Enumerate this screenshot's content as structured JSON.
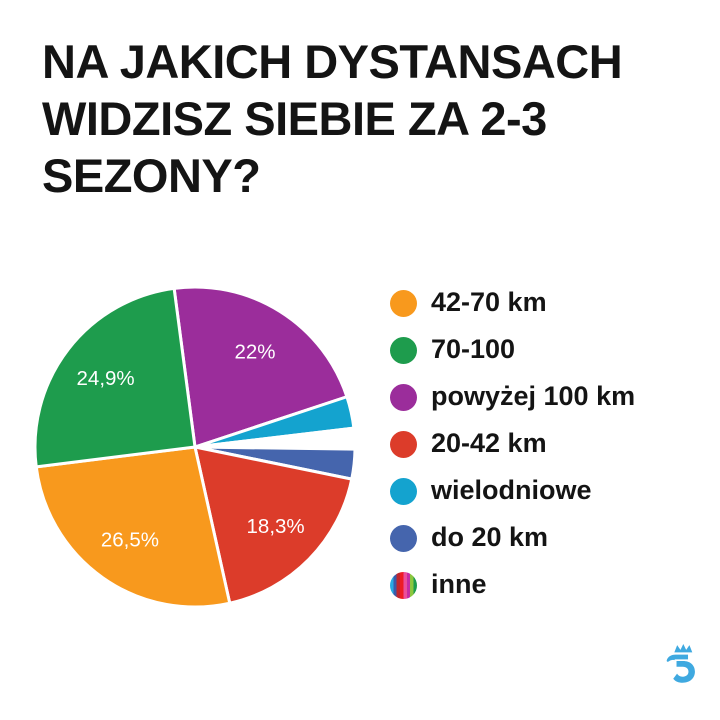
{
  "header": {
    "title": "NA JAKICH DYSTANSACH\nWIDZISZ SIEBIE ZA 2-3\nSEZONY?"
  },
  "chart_data": {
    "type": "pie",
    "title": "NA JAKICH DYSTANSACH WIDZISZ SIEBIE ZA 2-3 SEZONY?",
    "start_angle_deg": -7.5,
    "direction": "clockwise",
    "label_color": "#FFFFFF",
    "legend_position": "right",
    "slices_clockwise": [
      {
        "name": "powyżej 100 km",
        "value": 22.0,
        "display_label": "22%",
        "color": "#9B2D9B"
      },
      {
        "name": "wielodniowe",
        "value": 3.2,
        "display_label": "",
        "color": "#14A3CF"
      },
      {
        "name": "inne",
        "value": 2.1,
        "display_label": "",
        "color": "#FFFFFF"
      },
      {
        "name": "do 20 km",
        "value": 3.0,
        "display_label": "",
        "color": "#4565AD"
      },
      {
        "name": "20-42 km",
        "value": 18.3,
        "display_label": "18,3%",
        "color": "#DC3C2A"
      },
      {
        "name": "42-70 km",
        "value": 26.5,
        "display_label": "26,5%",
        "color": "#F8991D"
      },
      {
        "name": "70-100",
        "value": 24.9,
        "display_label": "24,9%",
        "color": "#1E9C4D"
      }
    ]
  },
  "legend": {
    "items": [
      {
        "label": "42-70 km",
        "swatch": "solid",
        "color": "#F8991D"
      },
      {
        "label": "70-100",
        "swatch": "solid",
        "color": "#1E9C4D"
      },
      {
        "label": "powyżej 100 km",
        "swatch": "solid",
        "color": "#9B2D9B"
      },
      {
        "label": "20-42 km",
        "swatch": "solid",
        "color": "#DC3C2A"
      },
      {
        "label": "wielodniowe",
        "swatch": "solid",
        "color": "#14A3CF"
      },
      {
        "label": "do 20 km",
        "swatch": "solid",
        "color": "#4565AD"
      },
      {
        "label": "inne",
        "swatch": "striped",
        "stripe_colors": [
          "#29ABE2",
          "#3B5BA9",
          "#C1272D",
          "#ED1C24",
          "#EC4E9B",
          "#C52BA4",
          "#8CC63F",
          "#1E9C4D"
        ]
      }
    ]
  },
  "footer": {
    "logo_name": "crowned-brand-mark",
    "logo_color": "#3FA9E0"
  }
}
